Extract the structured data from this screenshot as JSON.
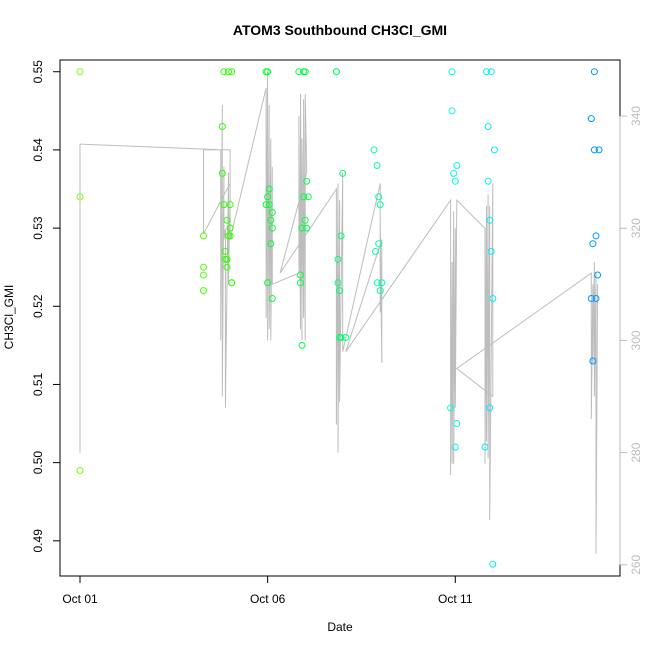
{
  "chart_data": {
    "type": "scatter",
    "title": "ATOM3 Southbound CH3Cl_GMI",
    "xlabel": "Date",
    "ylabel": "CH3Cl_GMI",
    "x_type": "date",
    "xlim": [
      "2016-10-01",
      "2016-10-15"
    ],
    "ylim": [
      0.4855,
      0.5515
    ],
    "x_ticks": [
      {
        "value": "2016-10-01",
        "label": "Oct 01"
      },
      {
        "value": "2016-10-06",
        "label": "Oct 06"
      },
      {
        "value": "2016-10-11",
        "label": "Oct 11"
      }
    ],
    "y_ticks": [
      0.49,
      0.5,
      0.51,
      0.52,
      0.53,
      0.54,
      0.55
    ],
    "y_tick_labels": [
      "0.49",
      "0.50",
      "0.51",
      "0.52",
      "0.53",
      "0.54",
      "0.55"
    ],
    "y2_range": [
      258,
      350
    ],
    "y2_ticks": [
      260,
      280,
      300,
      320,
      340
    ],
    "y2_tick_labels": [
      "260",
      "280",
      "300",
      "320",
      "340"
    ],
    "grid": false,
    "legend": "none",
    "colors": {
      "axis": "#000000",
      "secondary_axis": "#bdbdbd",
      "secondary_line": "#bdbdbd",
      "point_early": "#7fff00",
      "point_mid": "#00ff60",
      "point_late": "#00e5ff",
      "point_last": "#0090ff"
    },
    "series": [
      {
        "kind": "points",
        "x": [
          "2016-10-01 00:00",
          "2016-10-01 00:00",
          "2016-10-01 00:00",
          "2016-10-04 07:00",
          "2016-10-04 07:00",
          "2016-10-04 07:00",
          "2016-10-04 07:00",
          "2016-10-04 19:00",
          "2016-10-04 19:00",
          "2016-10-04 20:00",
          "2016-10-04 20:00",
          "2016-10-04 21:00",
          "2016-10-04 21:00",
          "2016-10-04 22:00",
          "2016-10-04 22:00",
          "2016-10-04 22:00",
          "2016-10-04 23:00",
          "2016-10-04 23:00",
          "2016-10-05 00:00",
          "2016-10-05 00:00",
          "2016-10-05 00:00",
          "2016-10-05 01:00",
          "2016-10-05 01:00",
          "2016-10-05 01:00",
          "2016-10-05 23:00",
          "2016-10-05 23:00",
          "2016-10-06 00:00",
          "2016-10-06 00:00",
          "2016-10-06 00:00",
          "2016-10-06 01:00",
          "2016-10-06 01:00",
          "2016-10-06 02:00",
          "2016-10-06 02:00",
          "2016-10-06 03:00",
          "2016-10-06 03:00",
          "2016-10-06 03:00",
          "2016-10-06 20:00",
          "2016-10-06 21:00",
          "2016-10-06 21:00",
          "2016-10-06 22:00",
          "2016-10-06 22:00",
          "2016-10-06 23:00",
          "2016-10-06 23:00",
          "2016-10-07 00:00",
          "2016-10-07 00:00",
          "2016-10-07 01:00",
          "2016-10-07 01:00",
          "2016-10-07 02:00",
          "2016-10-07 20:00",
          "2016-10-07 20:00",
          "2016-10-07 21:00",
          "2016-10-07 21:00",
          "2016-10-07 22:00",
          "2016-10-07 22:00",
          "2016-10-07 23:00",
          "2016-10-07 23:00",
          "2016-10-08 00:00",
          "2016-10-08 02:00",
          "2016-10-08 20:00",
          "2016-10-08 21:00",
          "2016-10-08 22:00",
          "2016-10-08 22:00",
          "2016-10-08 23:00",
          "2016-10-08 23:00",
          "2016-10-09 00:00",
          "2016-10-09 00:00",
          "2016-10-09 01:00",
          "2016-10-10 21:00",
          "2016-10-10 22:00",
          "2016-10-10 22:00",
          "2016-10-10 23:00",
          "2016-10-11 00:00",
          "2016-10-11 00:00",
          "2016-10-11 01:00",
          "2016-10-11 01:00",
          "2016-10-11 19:00",
          "2016-10-11 20:00",
          "2016-10-11 21:00",
          "2016-10-11 21:00",
          "2016-10-11 22:00",
          "2016-10-11 22:00",
          "2016-10-11 23:00",
          "2016-10-11 23:00",
          "2016-10-12 00:00",
          "2016-10-12 00:00",
          "2016-10-12 01:00",
          "2016-10-14 15:00",
          "2016-10-14 15:00",
          "2016-10-14 16:00",
          "2016-10-14 16:00",
          "2016-10-14 17:00",
          "2016-10-14 17:00",
          "2016-10-14 18:00",
          "2016-10-14 18:00",
          "2016-10-14 19:00",
          "2016-10-14 20:00"
        ],
        "y": [
          0.55,
          0.534,
          0.499,
          0.529,
          0.525,
          0.524,
          0.522,
          0.537,
          0.543,
          0.55,
          0.533,
          0.527,
          0.526,
          0.526,
          0.531,
          0.525,
          0.529,
          0.55,
          0.533,
          0.53,
          0.529,
          0.55,
          0.523,
          0.523,
          0.55,
          0.533,
          0.55,
          0.534,
          0.523,
          0.535,
          0.533,
          0.531,
          0.528,
          0.521,
          0.53,
          0.532,
          0.55,
          0.523,
          0.524,
          0.53,
          0.515,
          0.55,
          0.534,
          0.531,
          0.55,
          0.53,
          0.536,
          0.534,
          0.55,
          0.55,
          0.523,
          0.526,
          0.516,
          0.522,
          0.529,
          0.516,
          0.537,
          0.516,
          0.54,
          0.527,
          0.538,
          0.523,
          0.534,
          0.528,
          0.522,
          0.533,
          0.523,
          0.507,
          0.545,
          0.55,
          0.537,
          0.536,
          0.502,
          0.538,
          0.505,
          0.502,
          0.55,
          0.536,
          0.543,
          0.507,
          0.531,
          0.55,
          0.527,
          0.521,
          0.487,
          0.54,
          0.544,
          0.521,
          0.528,
          0.513,
          0.54,
          0.55,
          0.529,
          0.521,
          0.524,
          0.54
        ],
        "colors": [
          "#7fff00",
          "#7fff00",
          "#7fff00",
          "#4cff00",
          "#4cff00",
          "#4cff00",
          "#4cff00",
          "#30ff00",
          "#30ff00",
          "#30ff00",
          "#30ff00",
          "#30ff00",
          "#30ff00",
          "#30ff00",
          "#30ff00",
          "#30ff00",
          "#30ff00",
          "#30ff00",
          "#30ff00",
          "#30ff00",
          "#30ff00",
          "#30ff00",
          "#30ff00",
          "#30ff00",
          "#00ff30",
          "#00ff30",
          "#00ff30",
          "#00ff30",
          "#00ff30",
          "#00ff30",
          "#00ff30",
          "#00ff30",
          "#00ff30",
          "#00ff30",
          "#00ff30",
          "#00ff30",
          "#00ff45",
          "#00ff45",
          "#00ff45",
          "#00ff45",
          "#00ff45",
          "#00ff45",
          "#00ff45",
          "#00ff45",
          "#00ff45",
          "#00ff45",
          "#00ff45",
          "#00ff45",
          "#00ff70",
          "#00ff70",
          "#00ff70",
          "#00ff70",
          "#00ff70",
          "#00ff70",
          "#00ff70",
          "#00ff70",
          "#00ff70",
          "#00ff70",
          "#00ffa0",
          "#00ffa0",
          "#00ffa0",
          "#00ffa0",
          "#00ffa0",
          "#00ffa0",
          "#00ffa0",
          "#00ffa0",
          "#00ffa0",
          "#00ffe0",
          "#00ffe0",
          "#00ffe0",
          "#00ffe0",
          "#00ffe0",
          "#00ffe0",
          "#00ffe0",
          "#00ffe0",
          "#00eeff",
          "#00eeff",
          "#00eeff",
          "#00eeff",
          "#00eeff",
          "#00eeff",
          "#00eeff",
          "#00eeff",
          "#00eeff",
          "#00eeff",
          "#00eeff",
          "#0098ff",
          "#0098ff",
          "#0098ff",
          "#0098ff",
          "#0098ff",
          "#0098ff",
          "#0098ff",
          "#0098ff",
          "#0098ff",
          "#0098ff"
        ]
      },
      {
        "kind": "line",
        "axis": "right",
        "color": "#bdbdbd",
        "x": [
          "2016-10-01 00:00",
          "2016-10-01 00:00",
          "2016-10-01 00:00",
          "2016-10-04 18:00",
          "2016-10-04 18:00",
          "2016-10-04 19:00",
          "2016-10-04 19:00",
          "2016-10-04 20:00",
          "2016-10-04 20:00",
          "2016-10-04 21:00",
          "2016-10-04 21:00",
          "2016-10-04 23:00",
          "2016-10-04 23:00",
          "2016-10-05 00:00",
          "2016-10-05 00:00",
          "2016-10-04 07:00",
          "2016-10-04 07:00",
          "2016-10-04 07:00",
          "2016-10-04 07:00",
          "2016-10-05 00:00",
          "2016-10-05 00:00",
          "2016-10-05 23:00",
          "2016-10-05 23:00",
          "2016-10-06 00:00",
          "2016-10-06 00:00",
          "2016-10-06 01:00",
          "2016-10-06 01:00",
          "2016-10-06 02:00",
          "2016-10-06 02:00",
          "2016-10-06 03:00",
          "2016-10-06 03:00",
          "2016-10-06 20:00",
          "2016-10-06 20:00",
          "2016-10-06 21:00",
          "2016-10-06 21:00",
          "2016-10-06 22:00",
          "2016-10-06 22:00",
          "2016-10-06 23:00",
          "2016-10-06 23:00",
          "2016-10-07 00:00",
          "2016-10-07 00:00",
          "2016-10-07 01:00",
          "2016-10-06 08:00",
          "2016-10-07 20:00",
          "2016-10-07 20:00",
          "2016-10-07 21:00",
          "2016-10-07 21:00",
          "2016-10-07 22:00",
          "2016-10-07 22:00",
          "2016-10-08 00:00",
          "2016-10-08 00:00",
          "2016-10-09 00:00",
          "2016-10-09 00:00",
          "2016-10-09 00:00",
          "2016-10-09 01:00",
          "2016-10-09 01:00",
          "2016-10-08 02:00",
          "2016-10-10 21:00",
          "2016-10-10 21:00",
          "2016-10-10 22:00",
          "2016-10-10 22:00",
          "2016-10-10 23:00",
          "2016-10-10 23:00",
          "2016-10-11 00:00",
          "2016-10-11 00:00",
          "2016-10-11 01:00",
          "2016-10-11 19:00",
          "2016-10-11 19:00",
          "2016-10-11 20:00",
          "2016-10-11 20:00",
          "2016-10-11 21:00",
          "2016-10-11 21:00",
          "2016-10-11 22:00",
          "2016-10-11 22:00",
          "2016-10-12 00:00",
          "2016-10-12 00:00",
          "2016-10-11 01:00",
          "2016-10-14 15:00",
          "2016-10-14 15:00",
          "2016-10-14 16:00",
          "2016-10-14 16:00",
          "2016-10-14 17:00",
          "2016-10-14 17:00",
          "2016-10-14 18:00",
          "2016-10-14 18:00",
          "2016-10-14 19:00"
        ],
        "y": [
          335,
          280,
          335,
          334,
          300,
          342,
          290,
          331,
          318,
          320,
          288,
          330,
          310,
          327,
          334,
          334,
          327,
          322,
          319,
          328,
          318,
          345,
          304,
          348,
          300,
          342,
          302,
          336,
          300,
          331,
          310,
          312,
          340,
          302,
          344,
          300,
          336,
          304,
          343,
          300,
          344,
          330,
          312,
          327,
          285,
          328,
          280,
          325,
          289,
          330,
          298,
          328,
          305,
          322,
          296,
          318,
          298,
          325,
          276,
          314,
          278,
          323,
          278,
          320,
          288,
          325,
          320,
          278,
          324,
          282,
          326,
          279,
          324,
          268,
          328,
          290,
          295,
          312,
          286,
          310,
          296,
          314,
          290,
          312,
          262,
          310
        ]
      }
    ]
  }
}
